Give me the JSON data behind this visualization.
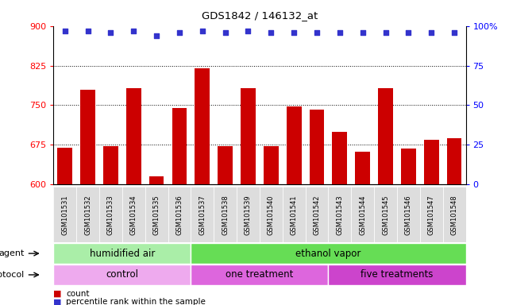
{
  "title": "GDS1842 / 146132_at",
  "samples": [
    "GSM101531",
    "GSM101532",
    "GSM101533",
    "GSM101534",
    "GSM101535",
    "GSM101536",
    "GSM101537",
    "GSM101538",
    "GSM101539",
    "GSM101540",
    "GSM101541",
    "GSM101542",
    "GSM101543",
    "GSM101544",
    "GSM101545",
    "GSM101546",
    "GSM101547",
    "GSM101548"
  ],
  "bar_values": [
    670,
    780,
    672,
    783,
    615,
    745,
    820,
    672,
    782,
    672,
    748,
    742,
    700,
    662,
    783,
    668,
    685,
    688
  ],
  "percentile_values": [
    97,
    97,
    96,
    97,
    94,
    96,
    97,
    96,
    97,
    96,
    96,
    96,
    96,
    96,
    96,
    96,
    96,
    96
  ],
  "bar_color": "#cc0000",
  "dot_color": "#3333cc",
  "ylim_left": [
    600,
    900
  ],
  "ylim_right": [
    0,
    100
  ],
  "yticks_left": [
    600,
    675,
    750,
    825,
    900
  ],
  "yticks_right": [
    0,
    25,
    50,
    75,
    100
  ],
  "ytick_right_labels": [
    "0",
    "25",
    "50",
    "75",
    "100%"
  ],
  "grid_values": [
    675,
    750,
    825
  ],
  "agent_groups": [
    {
      "label": "humidified air",
      "start": 0,
      "end": 6,
      "color": "#aaeea8"
    },
    {
      "label": "ethanol vapor",
      "start": 6,
      "end": 18,
      "color": "#66dd55"
    }
  ],
  "protocol_groups": [
    {
      "label": "control",
      "start": 0,
      "end": 6,
      "color": "#eeaaee"
    },
    {
      "label": "one treatment",
      "start": 6,
      "end": 12,
      "color": "#dd66dd"
    },
    {
      "label": "five treatments",
      "start": 12,
      "end": 18,
      "color": "#cc44cc"
    }
  ],
  "legend_count_color": "#cc0000",
  "legend_dot_color": "#3333cc",
  "background_color": "#ffffff",
  "plot_bg_color": "#ffffff",
  "xtick_bg_color": "#dddddd"
}
